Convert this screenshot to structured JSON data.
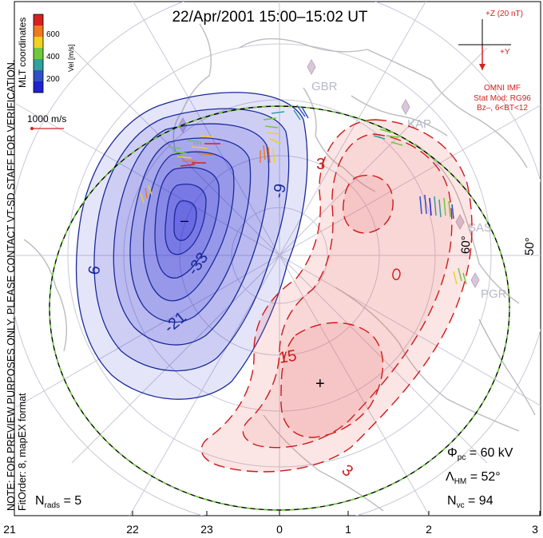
{
  "title": "22/Apr/2001  15:00–15:02  UT",
  "colorbar": {
    "label": "Vel [m/s]",
    "ticks": [
      "600",
      "400",
      "200"
    ],
    "colors": [
      "#d62020",
      "#f07820",
      "#f0d020",
      "#70c840",
      "#30a0a0",
      "#3050c8",
      "#2020d0"
    ]
  },
  "coords_label": "MLT coordinates",
  "vector_scale": "1000 m/s",
  "side_note": "NOTE: FOR PREVIEW PURPOSES ONLY. PLEASE CONTACT VT-SD STAFF FOR VERIFICATION.",
  "fit_note": "FitOrder: 8, mapEX format",
  "imf": {
    "z_label": "+Z (20 nT)",
    "y_label": "+Y",
    "lines": [
      "OMNI IMF",
      "Stat Mod: RG96",
      "Bz–, 6<BT<12"
    ]
  },
  "stations": [
    {
      "name": "GBR"
    },
    {
      "name": "KAP"
    },
    {
      "name": "SAS"
    },
    {
      "name": "PGR"
    },
    {
      "name": "..."
    }
  ],
  "lat_labels": [
    "60°",
    "50°"
  ],
  "contour_labels": {
    "negative": [
      "6",
      "-9",
      "-21",
      "-33"
    ],
    "positive": [
      "3",
      "15",
      "3"
    ]
  },
  "extrema": {
    "min": "–",
    "max": "+"
  },
  "stats": {
    "phi_pc": {
      "sym": "Φ",
      "sub": "pc",
      "value": " = 60 kV"
    },
    "lambda_hm": {
      "sym": "Λ",
      "sub": "HM",
      "value": " = 52°"
    },
    "n_vc": {
      "sym": "N",
      "sub": "vc",
      "value": " = 94"
    },
    "n_rads": {
      "sym": "N",
      "sub": "rads",
      "value": " = 5"
    }
  },
  "mlt_axis": [
    "21",
    "22",
    "23",
    "0",
    "1",
    "2",
    "3"
  ],
  "colors": {
    "negative_fill": "#2a2ad8",
    "negative_line": "#1a2a9a",
    "positive_fill": "#e86060",
    "positive_line": "#d01818",
    "grid": "#c8c8d8",
    "land": "#bcbcbc"
  }
}
